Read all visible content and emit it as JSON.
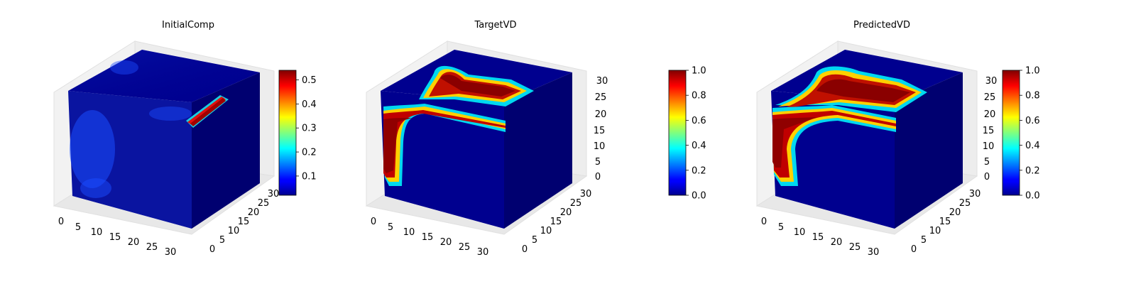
{
  "chart_data": [
    {
      "type": "voxel3d",
      "title": "InitialComp",
      "x_ticks": [
        "0",
        "5",
        "10",
        "15",
        "20",
        "25",
        "30"
      ],
      "y_ticks": [
        "0",
        "5",
        "10",
        "15",
        "20",
        "25",
        "30"
      ],
      "z_ticks": [],
      "grid_size": 32,
      "colormap": "jet",
      "colorbar": {
        "min": 0.02,
        "max": 0.54,
        "ticks": [
          "0.1",
          "0.2",
          "0.3",
          "0.4",
          "0.5"
        ],
        "tick_values": [
          0.1,
          0.2,
          0.3,
          0.4,
          0.5
        ]
      }
    },
    {
      "type": "voxel3d",
      "title": "TargetVD",
      "x_ticks": [
        "0",
        "5",
        "10",
        "15",
        "20",
        "25",
        "30"
      ],
      "y_ticks": [
        "0",
        "5",
        "10",
        "15",
        "20",
        "25",
        "30"
      ],
      "z_ticks": [
        "0",
        "5",
        "10",
        "15",
        "20",
        "25",
        "30"
      ],
      "grid_size": 32,
      "colormap": "jet",
      "colorbar": {
        "min": 0.0,
        "max": 1.0,
        "ticks": [
          "0.0",
          "0.2",
          "0.4",
          "0.6",
          "0.8",
          "1.0"
        ],
        "tick_values": [
          0,
          0.2,
          0.4,
          0.6,
          0.8,
          1.0
        ]
      }
    },
    {
      "type": "voxel3d",
      "title": "PredictedVD",
      "x_ticks": [
        "0",
        "5",
        "10",
        "15",
        "20",
        "25",
        "30"
      ],
      "y_ticks": [
        "0",
        "5",
        "10",
        "15",
        "20",
        "25",
        "30"
      ],
      "z_ticks": [
        "0",
        "5",
        "10",
        "15",
        "20",
        "25",
        "30"
      ],
      "grid_size": 32,
      "colormap": "jet",
      "colorbar": {
        "min": 0.0,
        "max": 1.0,
        "ticks": [
          "0.0",
          "0.2",
          "0.4",
          "0.6",
          "0.8",
          "1.0"
        ],
        "tick_values": [
          0,
          0.2,
          0.4,
          0.6,
          0.8,
          1.0
        ]
      }
    }
  ],
  "colors": {
    "low": "#00008f",
    "high": "#800000",
    "pane": "#f2f2f2",
    "grid": "#d8d8d8"
  }
}
